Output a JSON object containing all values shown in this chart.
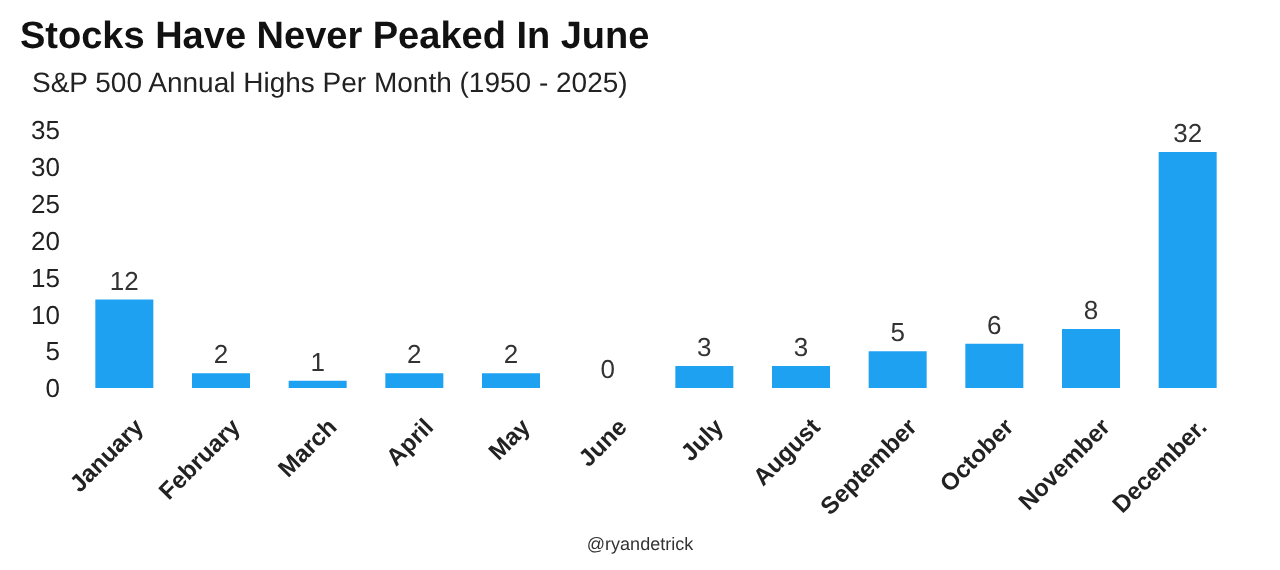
{
  "chart_data": {
    "type": "bar",
    "title": "Stocks Have Never Peaked In June",
    "subtitle": "S&P 500 Annual Highs Per Month (1950 - 2025)",
    "categories": [
      "January",
      "February",
      "March",
      "April",
      "May",
      "June",
      "July",
      "August",
      "September",
      "October",
      "November",
      "December."
    ],
    "values": [
      12,
      2,
      1,
      2,
      2,
      0,
      3,
      3,
      5,
      6,
      8,
      32
    ],
    "color": "#1ea1f1",
    "ylim": [
      0,
      35
    ],
    "yticks": [
      0,
      5,
      10,
      15,
      20,
      25,
      30,
      35
    ],
    "grid": false,
    "data_labels": true,
    "annotations": [
      "@ryandetrick"
    ]
  }
}
